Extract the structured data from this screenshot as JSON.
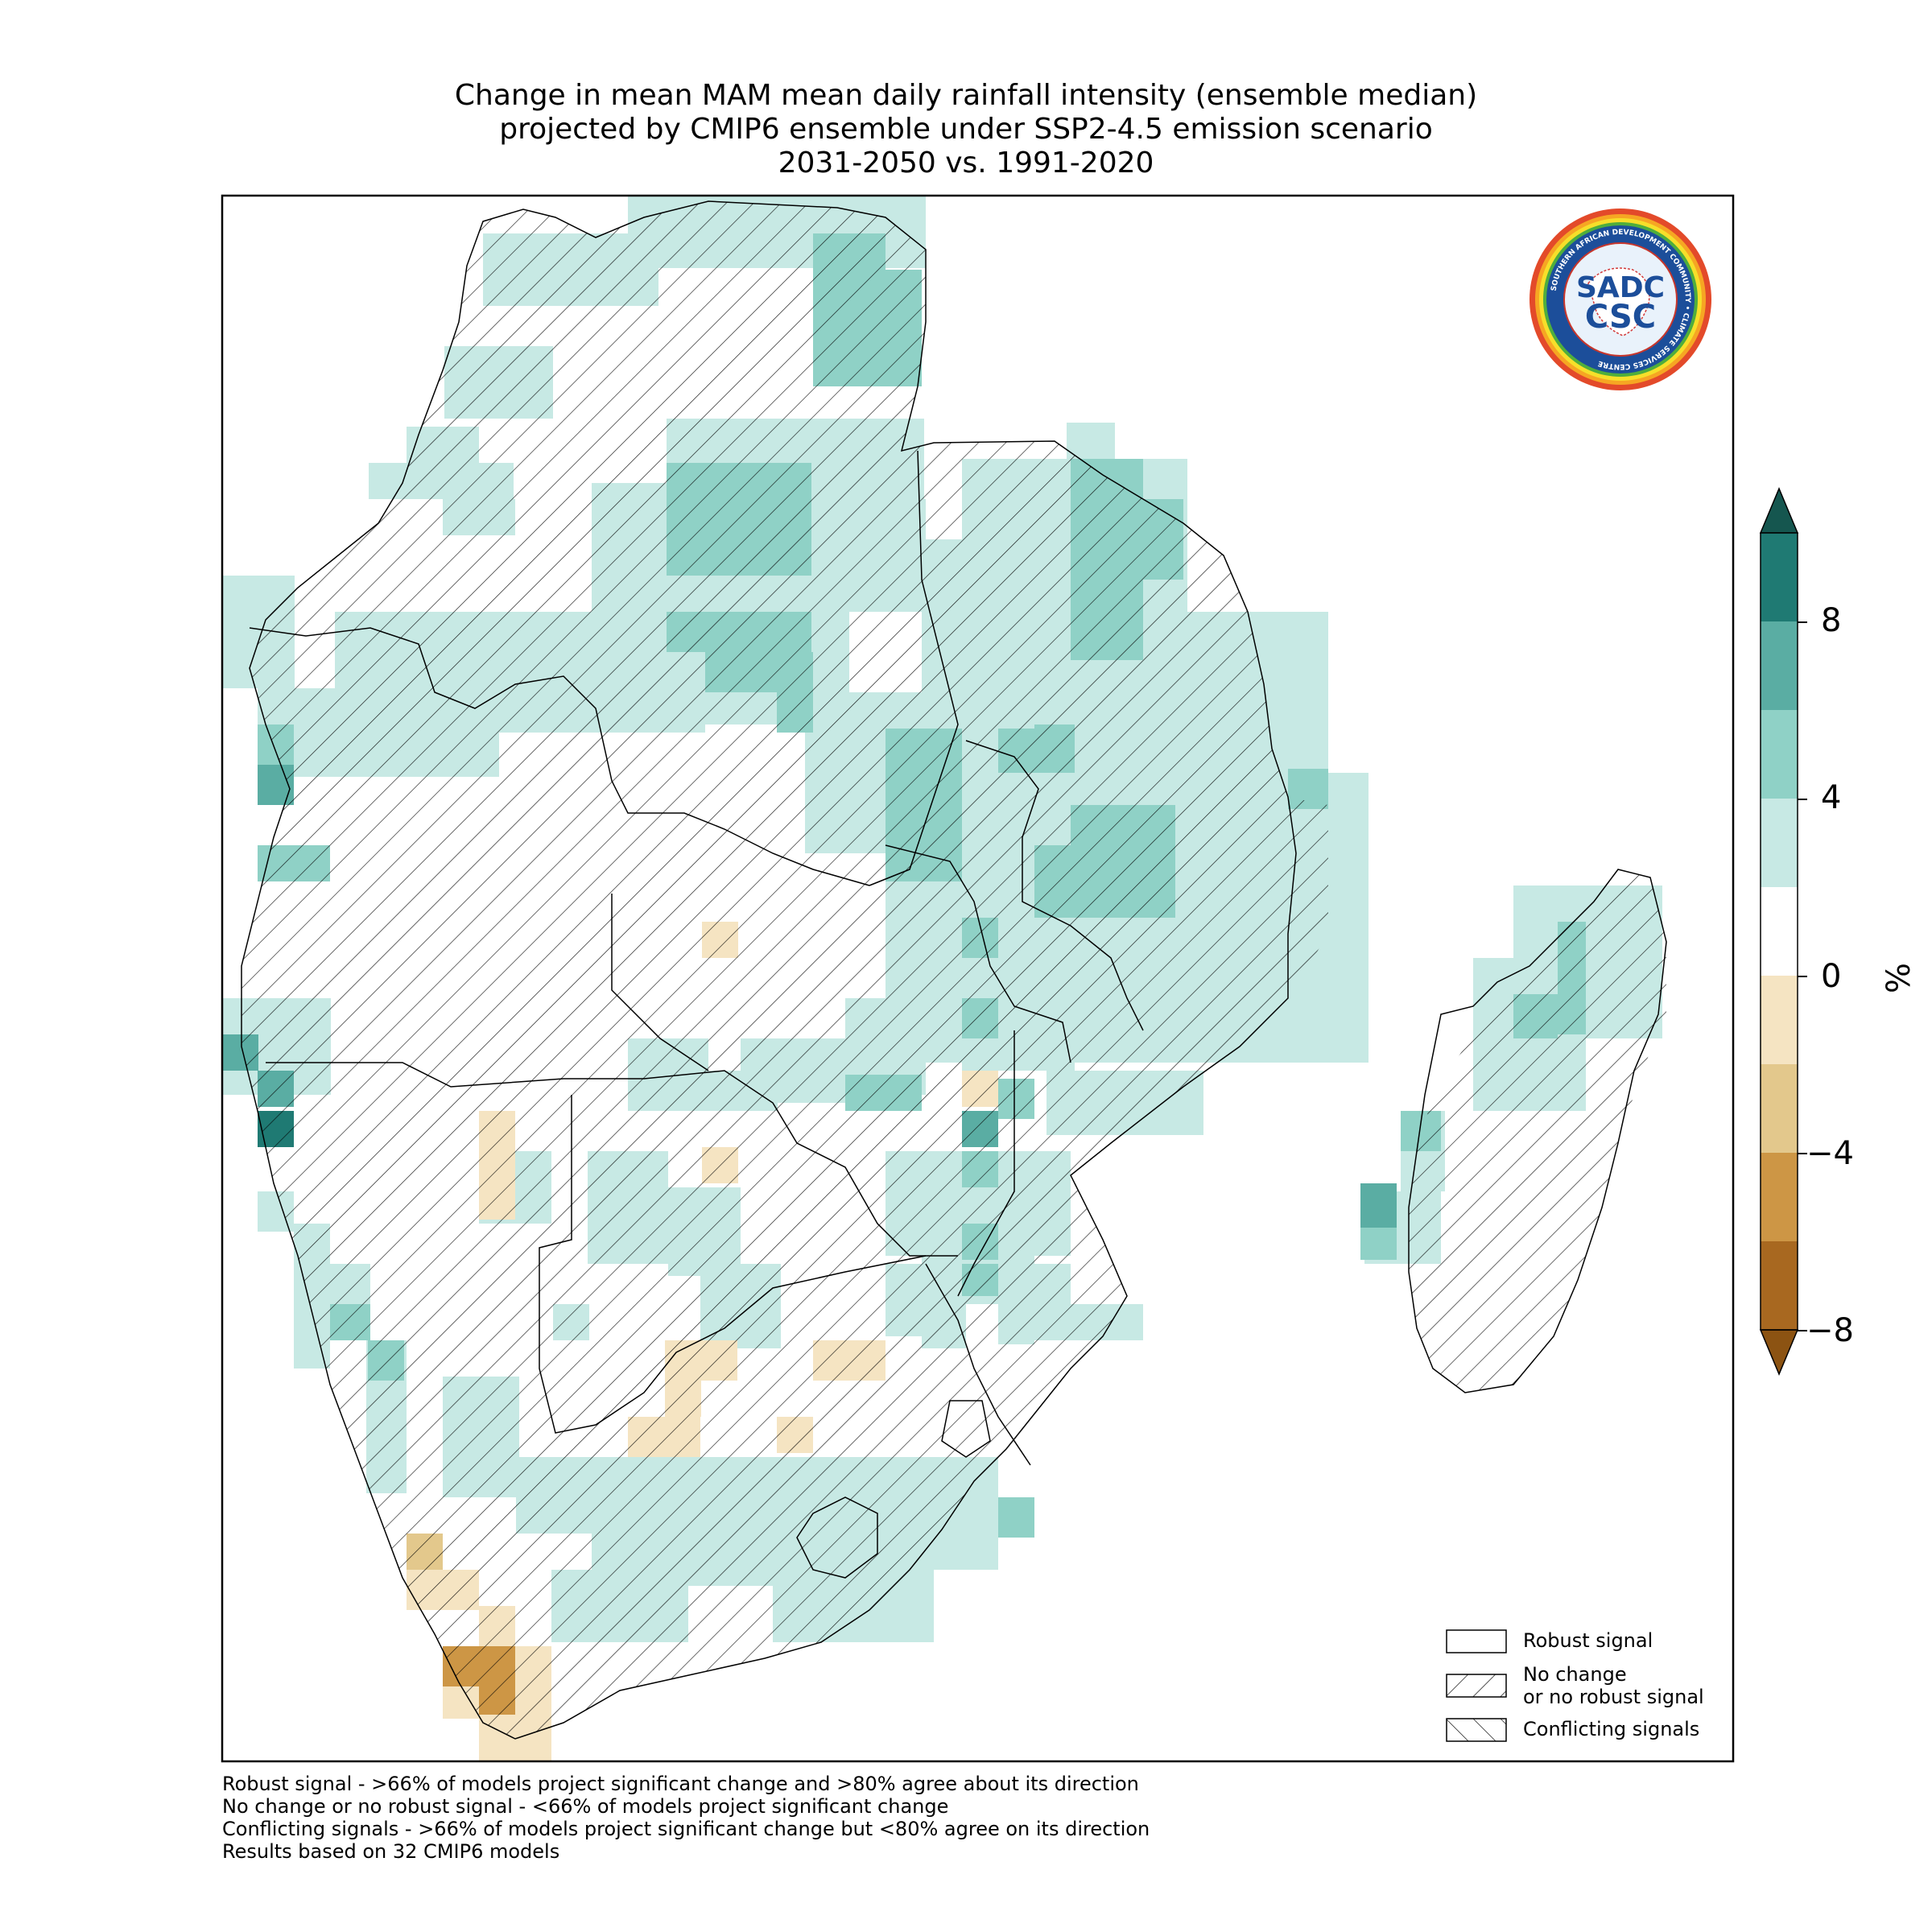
{
  "title": {
    "line1": "Change in mean MAM mean daily rainfall intensity (ensemble median)",
    "line2": "projected by CMIP6 ensemble under SSP2-4.5 emission scenario",
    "line3": "2031-2050 vs. 1991-2020"
  },
  "colorbar": {
    "unit": "%",
    "ticks": [
      "8",
      "4",
      "0",
      "−4",
      "−8"
    ],
    "colors": [
      "#1f7a73",
      "#5aada3",
      "#8fd1c6",
      "#c7e9e4",
      "#ffffff",
      "#f5e4c2",
      "#e3c88c",
      "#cd9645",
      "#a86820"
    ]
  },
  "legend": {
    "robust": "Robust signal",
    "no_change_1": "No change",
    "no_change_2": "or no robust signal",
    "conflicting": "Conflicting signals"
  },
  "logo": {
    "line1": "SADC",
    "line2": "CSC",
    "ring_text": "SOUTHERN AFRICAN DEVELOPMENT COMMUNITY • CLIMATE SERVICES CENTRE"
  },
  "footnotes": [
    "Robust signal - >66% of models project significant change and >80% agree about its direction",
    "No change or no robust signal - <66% of models project significant change",
    "Conflicting signals - >66% of models project significant change but <80% agree on its direction",
    "Results based on 32 CMIP6 models"
  ]
}
